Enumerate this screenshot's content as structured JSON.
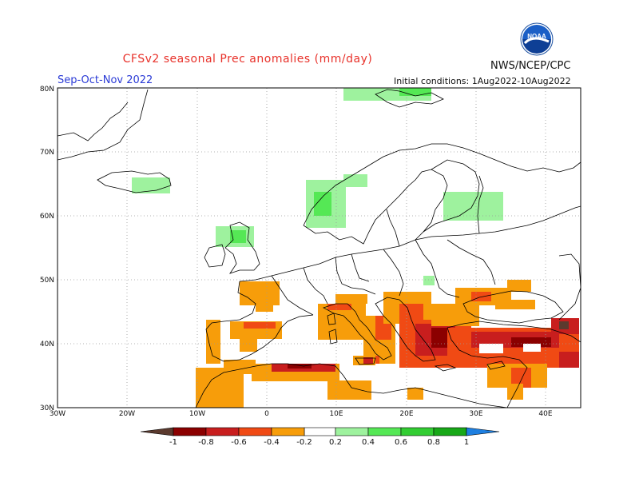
{
  "header": {
    "title": "CFSv2 seasonal Prec anomalies (mm/day)",
    "agency": "NWS/NCEP/CPC",
    "period": "Sep-Oct-Nov 2022",
    "initial_conditions": "Initial conditions: 1Aug2022-10Aug2022",
    "logo_text": "NOAA"
  },
  "map": {
    "lat_labels": [
      "80N",
      "70N",
      "60N",
      "50N",
      "40N",
      "30N"
    ],
    "lon_labels": [
      "30W",
      "20W",
      "10W",
      "0",
      "10E",
      "20E",
      "30E",
      "40E"
    ],
    "gridlines": "dotted"
  },
  "colorbar": {
    "labels": [
      "-1",
      "-0.8",
      "-0.6",
      "-0.4",
      "-0.2",
      "0.2",
      "0.4",
      "0.6",
      "0.8",
      "1"
    ],
    "colors": {
      "lt_-1": "#5b3a2e",
      "-1_-0.8": "#8b0000",
      "-0.8_-0.6": "#c81e1e",
      "-0.6_-0.4": "#f04a14",
      "-0.4_-0.2": "#f79d0a",
      "0.2_0.4": "#9ef29e",
      "0.4_0.6": "#55e855",
      "0.6_0.8": "#32cd32",
      "0.8_1": "#18a818",
      "gt_1": "#1e7fe0"
    }
  }
}
